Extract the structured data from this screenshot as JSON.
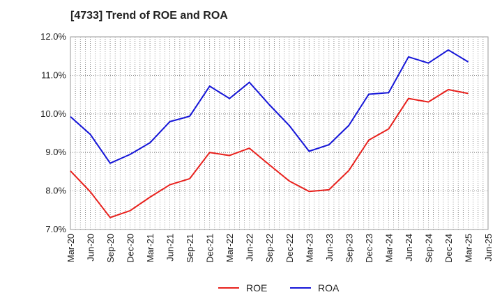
{
  "chart_data": {
    "type": "line",
    "title": "[4733]  Trend of ROE and ROA",
    "xlabel": "",
    "ylabel": "",
    "categories": [
      "Mar-20",
      "Jun-20",
      "Sep-20",
      "Dec-20",
      "Mar-21",
      "Jun-21",
      "Sep-21",
      "Dec-21",
      "Mar-22",
      "Jun-22",
      "Sep-22",
      "Dec-22",
      "Mar-23",
      "Jun-23",
      "Sep-23",
      "Dec-23",
      "Mar-24",
      "Jun-24",
      "Sep-24",
      "Dec-24",
      "Mar-25",
      "Jun-25"
    ],
    "ylim": [
      7.0,
      12.0
    ],
    "yticks": [
      "7.0%",
      "8.0%",
      "9.0%",
      "10.0%",
      "11.0%",
      "12.0%"
    ],
    "grid": true,
    "legend_position": "bottom",
    "series": [
      {
        "name": "ROE",
        "color": "#e8201c",
        "values": [
          8.52,
          7.98,
          7.31,
          7.49,
          7.84,
          8.16,
          8.32,
          9.0,
          8.92,
          9.11,
          8.68,
          8.26,
          7.99,
          8.03,
          8.53,
          9.32,
          9.61,
          10.4,
          10.31,
          10.63,
          10.53,
          null
        ]
      },
      {
        "name": "ROA",
        "color": "#1515d8",
        "values": [
          9.93,
          9.47,
          8.72,
          8.95,
          9.25,
          9.8,
          9.94,
          10.72,
          10.4,
          10.82,
          10.24,
          9.7,
          9.03,
          9.2,
          9.7,
          10.51,
          10.55,
          11.48,
          11.32,
          11.66,
          11.35,
          null
        ]
      }
    ]
  }
}
